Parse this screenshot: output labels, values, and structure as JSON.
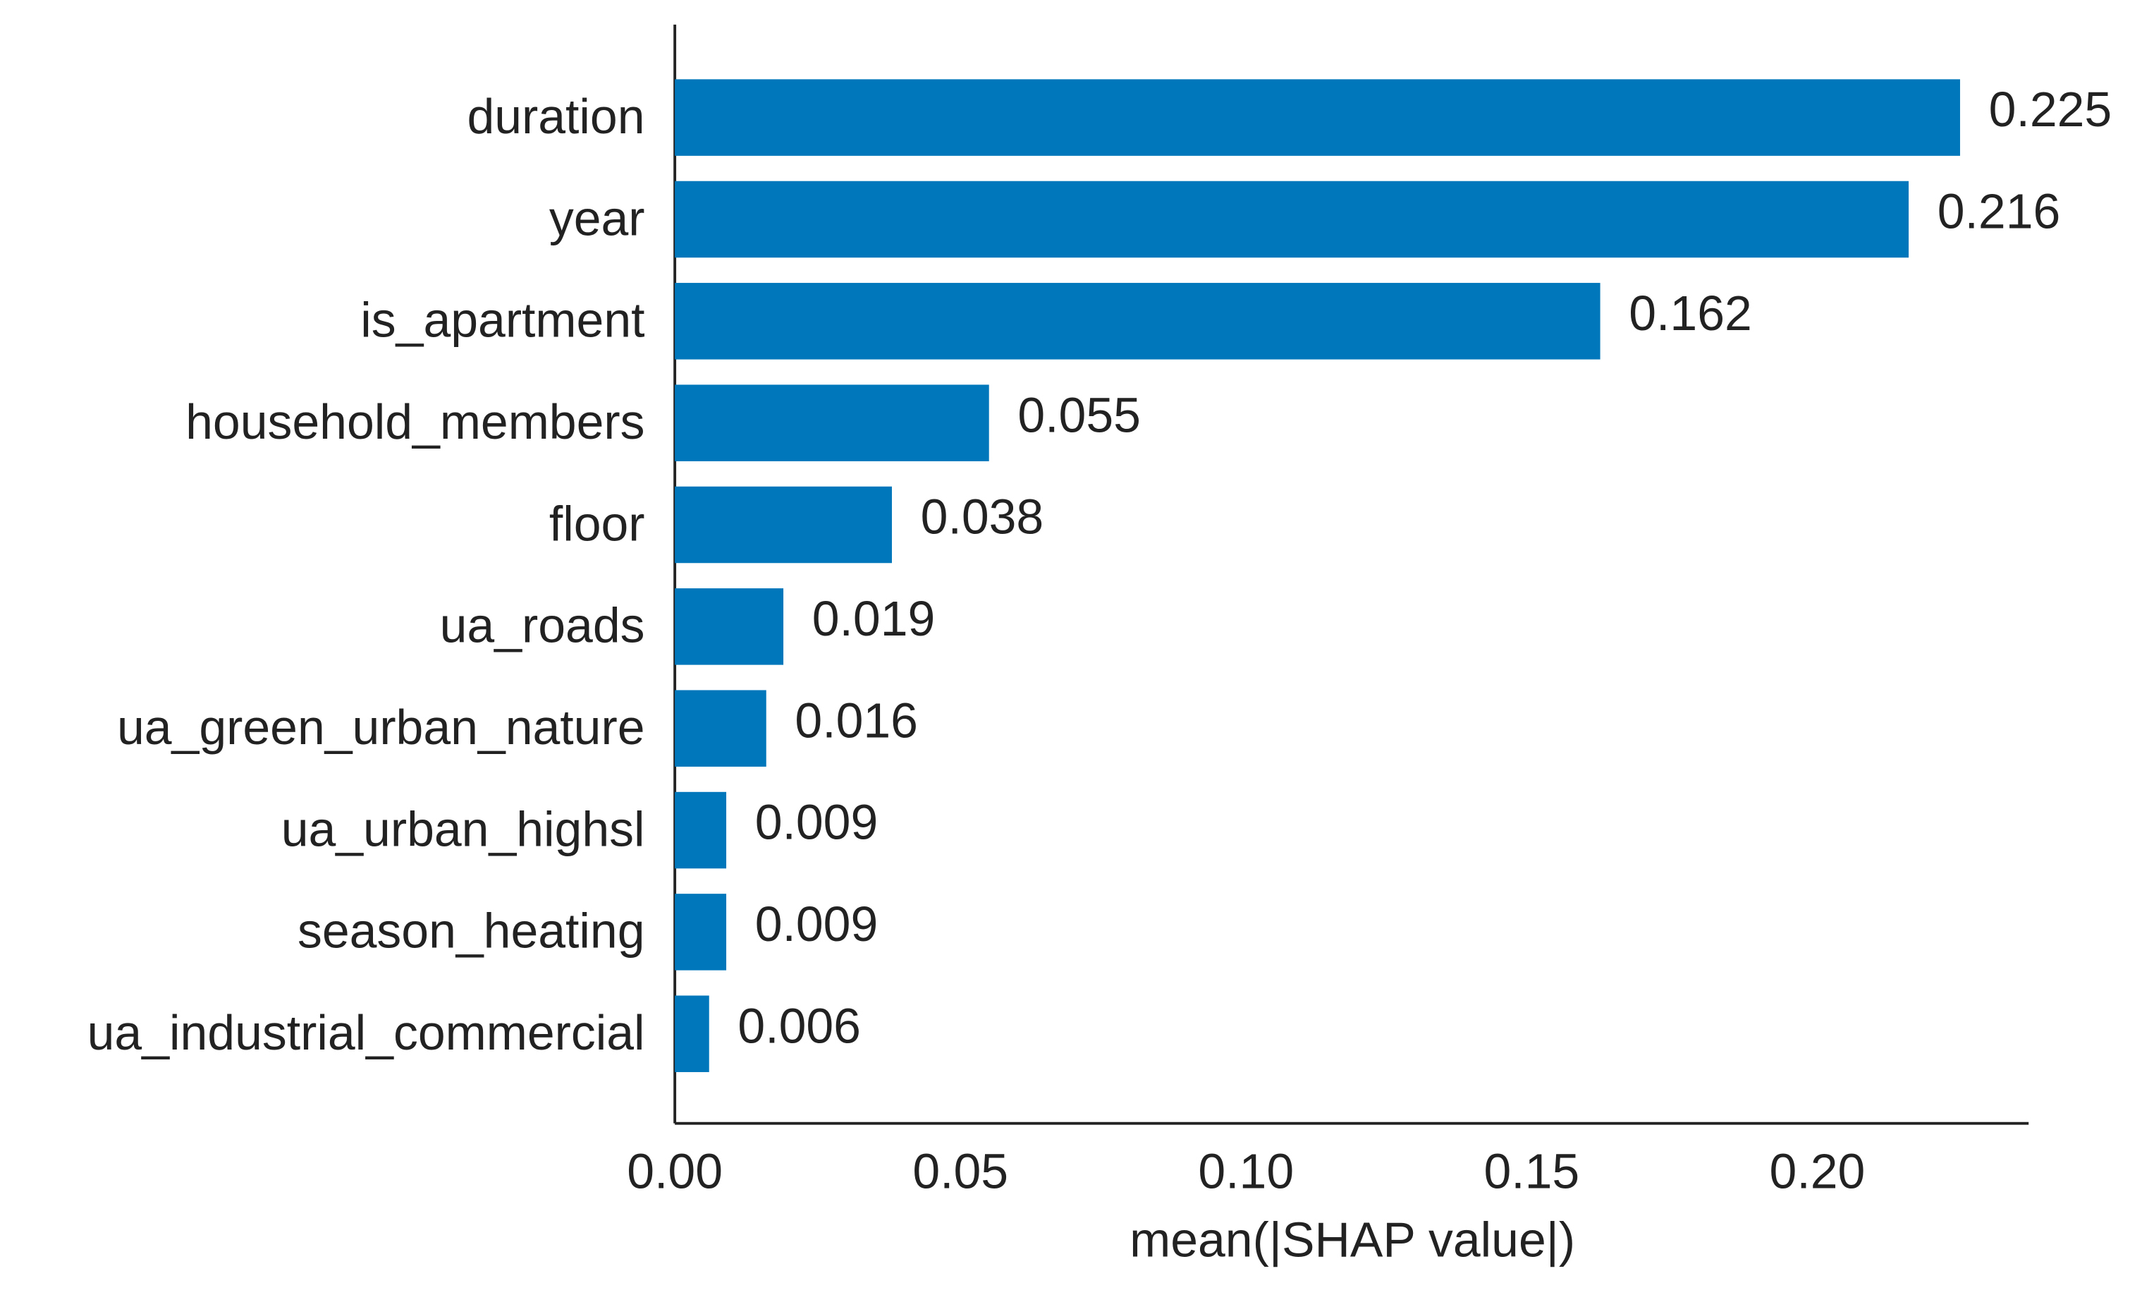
{
  "chart_data": {
    "type": "bar",
    "orientation": "horizontal",
    "xlabel": "mean(|SHAP value|)",
    "categories": [
      "duration",
      "year",
      "is_apartment",
      "household_members",
      "floor",
      "ua_roads",
      "ua_green_urban_nature",
      "ua_urban_highsl",
      "season_heating",
      "ua_industrial_commercial"
    ],
    "values": [
      0.225,
      0.216,
      0.162,
      0.055,
      0.038,
      0.019,
      0.016,
      0.009,
      0.009,
      0.006
    ],
    "color": "#0077bb",
    "xlim": [
      0,
      0.237
    ],
    "xticks": [
      {
        "value": 0,
        "label": "0.00"
      },
      {
        "value": 0.05,
        "label": "0.05"
      },
      {
        "value": 0.1,
        "label": "0.10"
      },
      {
        "value": 0.15,
        "label": "0.15"
      },
      {
        "value": 0.2,
        "label": "0.20"
      }
    ]
  }
}
